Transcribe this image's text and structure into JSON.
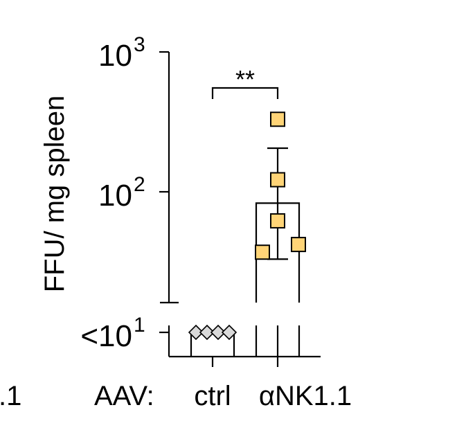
{
  "chart_data": {
    "type": "bar",
    "ylabel": "FFU/ mg spleen",
    "y_scale": "log",
    "ylim": [
      10,
      1000
    ],
    "y_ticks": [
      {
        "value": 1000,
        "base": "10",
        "exp": "3"
      },
      {
        "value": 100,
        "base": "10",
        "exp": "2"
      }
    ],
    "floor_tick": {
      "prefix": "<",
      "base": "10",
      "exp": "1"
    },
    "x_prefix": "AAV:",
    "left_cut_label": ".1",
    "categories": [
      "ctrl",
      "αNK1.1"
    ],
    "series": [
      {
        "values": [
          10,
          83
        ],
        "error_upper": [
          null,
          205
        ],
        "error_lower": [
          null,
          33
        ],
        "points": [
          [
            10,
            10,
            10,
            10
          ],
          [
            330,
            122,
            62,
            42,
            37
          ]
        ]
      }
    ],
    "significance": "**",
    "colors": {
      "ctrl_marker": "#d9d9d9",
      "nk_marker": "#ffd477",
      "axis": "#000000"
    }
  }
}
